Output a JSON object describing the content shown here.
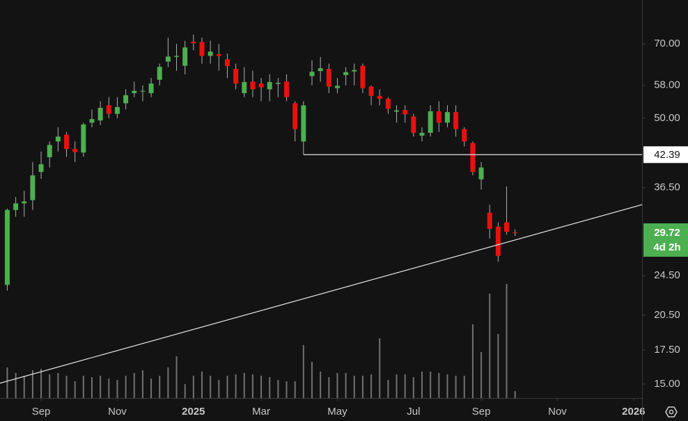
{
  "chart_data": {
    "type": "candlestick",
    "log_scale": true,
    "x": [
      -4,
      -3,
      -2,
      -1,
      0,
      1,
      2,
      3,
      4,
      5,
      6,
      7,
      8,
      9,
      10,
      11,
      12,
      13,
      14,
      15,
      16,
      17,
      18,
      19,
      20,
      21,
      22,
      23,
      24,
      25,
      26,
      27,
      28,
      29,
      30,
      31,
      32,
      33,
      34,
      35,
      36,
      37,
      38,
      39,
      40,
      41,
      42,
      43,
      44,
      45,
      46,
      47,
      48,
      49,
      50,
      51,
      52,
      53,
      54,
      55,
      56
    ],
    "open": [
      23.5,
      33,
      34,
      34.5,
      39.2,
      41.9,
      45,
      46.4,
      43.5,
      42.8,
      49,
      49.5,
      53,
      51,
      53.5,
      56,
      56.4,
      56,
      59.5,
      64.6,
      66,
      63.4,
      70.7,
      70.6,
      66.3,
      66.8,
      65.3,
      62.5,
      56,
      59,
      58.5,
      57,
      58.4,
      59,
      53.5,
      45,
      60.5,
      61.9,
      62.5,
      57.3,
      60.8,
      61.8,
      63.4,
      57.7,
      55.3,
      54.6,
      51.5,
      51.9,
      50.4,
      46.2,
      46.8,
      51.6,
      49,
      51.4,
      47.6,
      44.7,
      37.9,
      32.6,
      30.6,
      31.2,
      29.8
    ],
    "high": [
      33.2,
      35,
      36,
      41,
      43,
      45,
      48,
      47,
      45,
      49,
      52,
      54,
      55,
      55,
      57,
      59,
      58,
      60,
      64,
      72,
      70,
      71,
      73,
      72,
      71,
      70,
      67,
      64,
      63,
      62,
      60,
      61,
      60,
      61,
      54,
      54,
      65,
      66,
      64,
      60,
      63,
      64,
      64,
      58,
      57,
      55,
      53,
      53,
      51,
      48,
      53,
      54,
      53,
      53,
      48,
      45,
      41,
      33.8,
      31.2,
      36.7,
      30.2
    ],
    "low": [
      22.9,
      32,
      32,
      33,
      38,
      40,
      43,
      42,
      41,
      42,
      48,
      48.5,
      50,
      50,
      52,
      55,
      54,
      55,
      58,
      63,
      62,
      61,
      68,
      64,
      64,
      62,
      60,
      57,
      55,
      55,
      54,
      54,
      55,
      54,
      45,
      42.39,
      58,
      59,
      56,
      56,
      58,
      58,
      56,
      53,
      53,
      51,
      49,
      49,
      46,
      45,
      46,
      47,
      48,
      46,
      44,
      38.6,
      36.2,
      29,
      26.1,
      29.5,
      29.3
    ],
    "close": [
      33,
      34,
      34.3,
      38.6,
      40.6,
      44.3,
      46,
      43.5,
      42.9,
      48.6,
      49.8,
      52.4,
      51,
      52.6,
      55.5,
      56.6,
      56.6,
      58.5,
      63.1,
      66.1,
      66.3,
      68.9,
      70.2,
      66.3,
      67.6,
      66.3,
      63.3,
      58.5,
      58.9,
      57,
      57.5,
      58.9,
      58.7,
      55,
      47.6,
      53,
      61.7,
      62.7,
      57.7,
      57.9,
      61.6,
      62.2,
      57.3,
      55.3,
      54.6,
      52.2,
      51.8,
      50.9,
      46.8,
      46.8,
      51.6,
      49,
      51.4,
      47.6,
      45,
      39.2,
      40,
      30.3,
      26.8,
      29.9,
      29.72
    ],
    "volume": [
      22,
      18,
      16,
      20,
      21,
      17,
      18,
      16,
      12,
      16,
      15,
      16,
      14,
      13,
      16,
      18,
      20,
      14,
      16,
      22,
      30,
      10,
      16,
      19,
      16,
      13,
      16,
      17,
      18,
      17,
      16,
      15,
      13,
      12,
      12,
      38,
      26,
      19,
      15,
      18,
      18,
      16,
      16,
      17,
      43,
      13,
      17,
      17,
      15,
      19,
      19,
      18,
      17,
      16,
      16,
      53,
      33,
      75,
      46,
      82,
      5
    ],
    "volume_ylim": [
      0,
      100
    ],
    "up_color": "#4caf50",
    "down_color": "#e8110f",
    "xlim": [
      -4.86,
      71
    ],
    "xticks": [
      {
        "value": 0,
        "label": "Sep"
      },
      {
        "value": 9,
        "label": "Nov"
      },
      {
        "value": 18,
        "label": "2025"
      },
      {
        "value": 26,
        "label": "Mar"
      },
      {
        "value": 35,
        "label": "May"
      },
      {
        "value": 44,
        "label": "Jul"
      },
      {
        "value": 52,
        "label": "Sep"
      },
      {
        "value": 61,
        "label": "Nov"
      },
      {
        "value": 70,
        "label": "2026"
      }
    ],
    "ylim": [
      14.08,
      85.4
    ],
    "yticks": [
      {
        "value": 70,
        "label": "70.00"
      },
      {
        "value": 58,
        "label": "58.00"
      },
      {
        "value": 50,
        "label": "50.00"
      },
      {
        "value": 36.5,
        "label": "36.50"
      },
      {
        "value": 24.5,
        "label": "24.50"
      },
      {
        "value": 20.5,
        "label": "20.50"
      },
      {
        "value": 17.5,
        "label": "17.50"
      },
      {
        "value": 15,
        "label": "15.00"
      }
    ],
    "level": {
      "value": 42.39,
      "x_start": 31
    },
    "trendline": {
      "x": [
        -4.86,
        71
      ],
      "y": [
        15.06,
        33.8
      ]
    },
    "countdown": "4d 2h"
  }
}
